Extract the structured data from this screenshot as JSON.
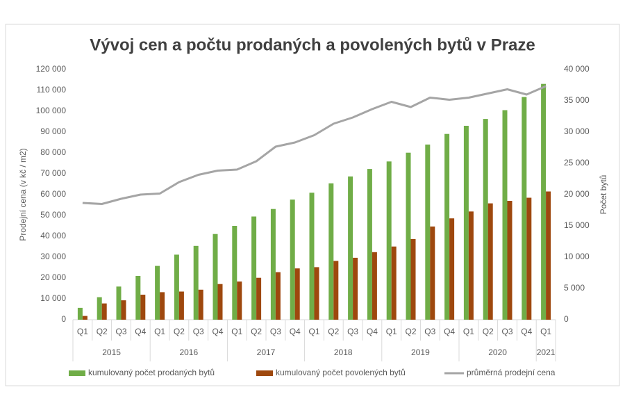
{
  "chart_data": {
    "type": "bar-line",
    "title": "Vývoj cen a počtu prodaných a povolených bytů v Praze",
    "y_label": "Prodejní cena (v kč / m2)",
    "y2_label": "Počet bytů",
    "categories": [
      "Q1",
      "Q2",
      "Q3",
      "Q4",
      "Q1",
      "Q2",
      "Q3",
      "Q4",
      "Q1",
      "Q2",
      "Q3",
      "Q4",
      "Q1",
      "Q2",
      "Q3",
      "Q4",
      "Q1",
      "Q2",
      "Q3",
      "Q4",
      "Q1",
      "Q2",
      "Q3",
      "Q4",
      "Q1"
    ],
    "category_groups": [
      {
        "label": "2015",
        "size": 4
      },
      {
        "label": "2016",
        "size": 4
      },
      {
        "label": "2017",
        "size": 4
      },
      {
        "label": "2018",
        "size": 4
      },
      {
        "label": "2019",
        "size": 4
      },
      {
        "label": "2020",
        "size": 4
      },
      {
        "label": "2021",
        "size": 1
      }
    ],
    "series": [
      {
        "name": "kumulovaný počet prodaných bytů",
        "type": "bar",
        "axis": "y2",
        "color": "#70ad47",
        "values": [
          1900,
          3600,
          5300,
          7000,
          8600,
          10400,
          11800,
          13700,
          15000,
          16500,
          17700,
          19200,
          20300,
          21800,
          22900,
          24100,
          25300,
          26700,
          28000,
          29700,
          31000,
          32100,
          33500,
          35600,
          37700
        ]
      },
      {
        "name": "kumulovaný počet povolených bytů",
        "type": "bar",
        "axis": "y2",
        "color": "#9e480e",
        "values": [
          600,
          2600,
          3100,
          4000,
          4400,
          4500,
          4800,
          5700,
          6100,
          6700,
          7600,
          8200,
          8400,
          9400,
          9900,
          10800,
          11700,
          12900,
          14900,
          16200,
          17300,
          18600,
          19000,
          19500,
          20500
        ]
      },
      {
        "name": "průměrná prodejní cena",
        "type": "line",
        "axis": "y",
        "color": "#a5a5a5",
        "values": [
          56000,
          55500,
          58000,
          60000,
          60500,
          66000,
          69500,
          71500,
          72000,
          76000,
          83000,
          85000,
          88500,
          94000,
          97000,
          101000,
          104500,
          102000,
          106500,
          105500,
          106500,
          108500,
          110500,
          108000,
          112000
        ]
      }
    ],
    "ylim": [
      0,
      120000
    ],
    "yticks": [
      {
        "value": 0,
        "label": "0"
      },
      {
        "value": 10000,
        "label": "10 000"
      },
      {
        "value": 20000,
        "label": "20 000"
      },
      {
        "value": 30000,
        "label": "30 000"
      },
      {
        "value": 40000,
        "label": "40 000"
      },
      {
        "value": 50000,
        "label": "50 000"
      },
      {
        "value": 60000,
        "label": "60 000"
      },
      {
        "value": 70000,
        "label": "70 000"
      },
      {
        "value": 80000,
        "label": "80 000"
      },
      {
        "value": 90000,
        "label": "90 000"
      },
      {
        "value": 100000,
        "label": "100 000"
      },
      {
        "value": 110000,
        "label": "110 000"
      },
      {
        "value": 120000,
        "label": "120 000"
      }
    ],
    "y2lim": [
      0,
      40000
    ],
    "y2ticks": [
      {
        "value": 0,
        "label": "0"
      },
      {
        "value": 5000,
        "label": "5 000"
      },
      {
        "value": 10000,
        "label": "10 000"
      },
      {
        "value": 15000,
        "label": "15 000"
      },
      {
        "value": 20000,
        "label": "20 000"
      },
      {
        "value": 25000,
        "label": "25 000"
      },
      {
        "value": 30000,
        "label": "30 000"
      },
      {
        "value": 35000,
        "label": "35 000"
      },
      {
        "value": 40000,
        "label": "40 000"
      }
    ],
    "grid": false,
    "legend": "bottom"
  }
}
